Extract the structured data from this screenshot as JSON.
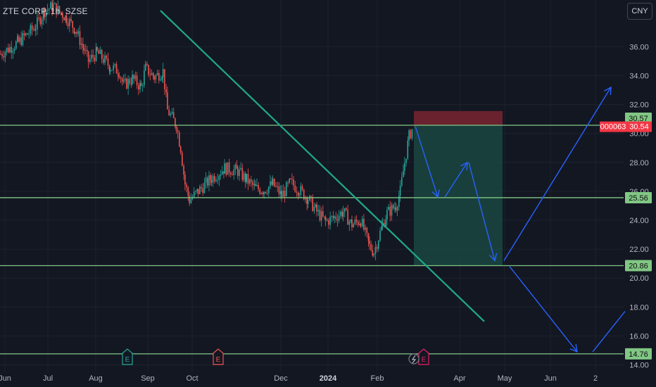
{
  "header": {
    "title": "ZTE CORP, 1h, SZSE"
  },
  "currency_button": {
    "label": "CNY"
  },
  "colors": {
    "background": "#131722",
    "up": "#26a69a",
    "down": "#ef5350",
    "level_line": "#81c784",
    "trend_line": "#1fa98a",
    "arrow": "#2962ff",
    "stop_zone": "#7a2430",
    "target_zone": "#1a4a44",
    "price_tag": "#f23645"
  },
  "chart_data": {
    "type": "candlestick",
    "ylim": [
      14,
      38
    ],
    "y_ticks": [
      "14.00",
      "16.00",
      "18.00",
      "20.00",
      "22.00",
      "24.00",
      "26.00",
      "28.00",
      "30.00",
      "32.00",
      "34.00",
      "36.00"
    ],
    "x_ticks": [
      {
        "label": "Jun",
        "bold": false
      },
      {
        "label": "Jul",
        "bold": false
      },
      {
        "label": "Aug",
        "bold": false
      },
      {
        "label": "Sep",
        "bold": false
      },
      {
        "label": "Oct",
        "bold": false
      },
      {
        "label": "Dec",
        "bold": false
      },
      {
        "label": "2024",
        "bold": true
      },
      {
        "label": "Feb",
        "bold": false
      },
      {
        "label": "Apr",
        "bold": false
      },
      {
        "label": "May",
        "bold": false
      },
      {
        "label": "Jun",
        "bold": false
      },
      {
        "label": "2",
        "bold": false
      }
    ],
    "price_path": [
      [
        0,
        35.5
      ],
      [
        4,
        36.3
      ],
      [
        8,
        37.4
      ],
      [
        10,
        38.5
      ],
      [
        12,
        38.8
      ],
      [
        15,
        38.0
      ],
      [
        17,
        37.2
      ],
      [
        19,
        35.8
      ],
      [
        20,
        35.0
      ],
      [
        22,
        35.6
      ],
      [
        25,
        34.6
      ],
      [
        27,
        34.3
      ],
      [
        28,
        33.3
      ],
      [
        30,
        33.8
      ],
      [
        32,
        33.2
      ],
      [
        33,
        34.5
      ],
      [
        35,
        33.9
      ],
      [
        37,
        34.3
      ],
      [
        38,
        31.6
      ],
      [
        40,
        30.6
      ],
      [
        41,
        29.0
      ],
      [
        42,
        26.5
      ],
      [
        43,
        25.4
      ],
      [
        45,
        26.0
      ],
      [
        48,
        26.9
      ],
      [
        51,
        27.6
      ],
      [
        54,
        27.4
      ],
      [
        56,
        26.8
      ],
      [
        58,
        26.2
      ],
      [
        60,
        26.1
      ],
      [
        62,
        26.5
      ],
      [
        64,
        25.7
      ],
      [
        66,
        26.6
      ],
      [
        68,
        26.1
      ],
      [
        70,
        25.5
      ],
      [
        72,
        24.6
      ],
      [
        74,
        23.9
      ],
      [
        76,
        24.2
      ],
      [
        78,
        24.6
      ],
      [
        80,
        23.7
      ],
      [
        82,
        24.0
      ],
      [
        84,
        22.2
      ],
      [
        85,
        21.8
      ],
      [
        87,
        23.7
      ],
      [
        88,
        24.5
      ],
      [
        90,
        25.0
      ],
      [
        91,
        26.0
      ],
      [
        92,
        28.0
      ],
      [
        93,
        29.8
      ],
      [
        94,
        30.5
      ]
    ],
    "levels": [
      {
        "label": "30.57",
        "value": 30.57
      },
      {
        "label": "25.56",
        "value": 25.56
      },
      {
        "label": "20.86",
        "value": 20.86
      },
      {
        "label": "14.76",
        "value": 14.76
      }
    ],
    "last_price": {
      "symbol": "000063",
      "value": "30.54"
    },
    "trend_line": {
      "from": {
        "x": "Jul",
        "y": 38.5
      },
      "to": {
        "x": "Apr",
        "y": 17.0
      }
    },
    "position": {
      "entry": 30.57,
      "stop": 31.55,
      "target": 20.86
    },
    "projection_arrows": [
      {
        "from": 30.5,
        "to": 25.6
      },
      {
        "from": 25.6,
        "to": 28.0
      },
      {
        "from": 28.0,
        "to": 21.2
      },
      {
        "from": 21.2,
        "to": 33.2
      },
      {
        "from": 20.8,
        "to": 14.9
      },
      {
        "from": 14.9,
        "to": 17.7
      }
    ],
    "events": [
      "E",
      "E",
      "E"
    ]
  }
}
